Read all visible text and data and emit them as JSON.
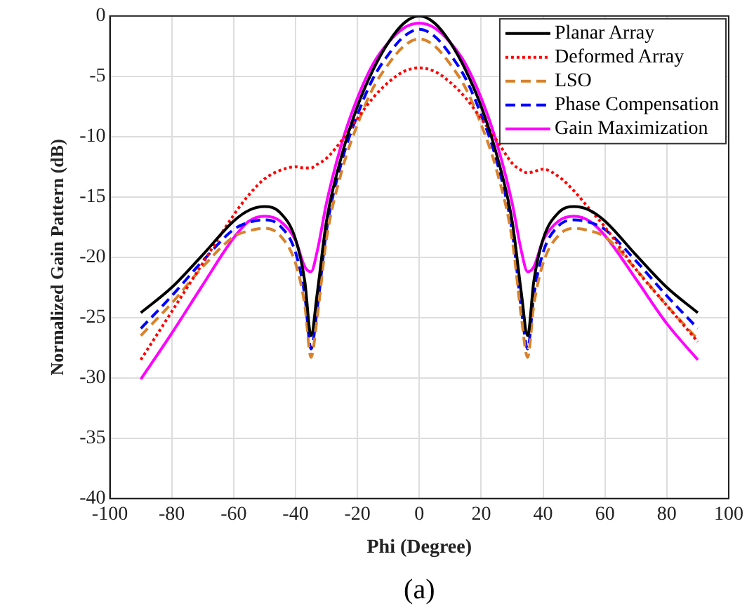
{
  "chart_data": {
    "type": "line",
    "xlabel": "Phi (Degree)",
    "ylabel": "Normalized Gain Pattern (dB)",
    "annotations": [
      "(a)"
    ],
    "x": [
      -90,
      -80,
      -70,
      -60,
      -55,
      -50,
      -45,
      -40,
      -37,
      -35,
      -33,
      -30,
      -25,
      -20,
      -15,
      -10,
      -5,
      0,
      5,
      10,
      15,
      20,
      25,
      30,
      33,
      35,
      37,
      40,
      45,
      50,
      55,
      60,
      70,
      80,
      90
    ],
    "series": [
      {
        "name": "Planar Array",
        "color": "#000000",
        "line_style": "solid",
        "values": [
          -24.6,
          -22.5,
          -19.8,
          -17.0,
          -16.1,
          -15.8,
          -16.3,
          -18.5,
          -22,
          -26.5,
          -23,
          -17,
          -11.5,
          -7.5,
          -4.5,
          -2.2,
          -0.6,
          0,
          -0.6,
          -2.2,
          -4.5,
          -7.5,
          -11.5,
          -17,
          -23,
          -26.5,
          -22,
          -18.5,
          -16.3,
          -15.8,
          -16.1,
          -17.0,
          -19.8,
          -22.5,
          -24.6
        ]
      },
      {
        "name": "Deformed Array",
        "color": "#ff0000",
        "line_style": "dotted",
        "values": [
          -28.5,
          -24.5,
          -20.5,
          -16.5,
          -14.8,
          -13.5,
          -12.8,
          -12.5,
          -12.6,
          -12.6,
          -12.3,
          -11.8,
          -10.3,
          -8.5,
          -6.8,
          -5.5,
          -4.6,
          -4.3,
          -4.6,
          -5.5,
          -6.8,
          -8.5,
          -10.3,
          -12.2,
          -12.8,
          -13.0,
          -12.9,
          -12.7,
          -13.3,
          -14.5,
          -16.0,
          -17.5,
          -21,
          -24,
          -27
        ]
      },
      {
        "name": "LSO",
        "color": "#d9822b",
        "line_style": "dashed",
        "values": [
          -26.5,
          -23.8,
          -20.8,
          -18.3,
          -17.8,
          -17.6,
          -18.2,
          -20.5,
          -24,
          -28.3,
          -25,
          -18.5,
          -12.8,
          -9,
          -6,
          -4,
          -2.5,
          -1.9,
          -2.5,
          -4,
          -6,
          -9,
          -12.8,
          -18.5,
          -25,
          -28.3,
          -24,
          -20.5,
          -18.2,
          -17.6,
          -17.8,
          -18.3,
          -21,
          -24,
          -26.8
        ]
      },
      {
        "name": "Phase Compensation",
        "color": "#0000ff",
        "line_style": "dashed",
        "values": [
          -25.9,
          -23.2,
          -20.3,
          -17.7,
          -17.1,
          -16.9,
          -17.4,
          -19.6,
          -23.2,
          -27.6,
          -24.3,
          -17.8,
          -12,
          -8.2,
          -5.2,
          -3.2,
          -1.7,
          -1.1,
          -1.7,
          -3.2,
          -5.2,
          -8.2,
          -12,
          -17.8,
          -24.3,
          -27.6,
          -23.2,
          -19.6,
          -17.4,
          -16.9,
          -17.1,
          -17.7,
          -20.3,
          -23.2,
          -25.9
        ]
      },
      {
        "name": "Gain Maximization",
        "color": "#ff00ff",
        "line_style": "solid",
        "values": [
          -30.1,
          -26.3,
          -22.3,
          -18.4,
          -17.0,
          -16.6,
          -17.0,
          -18.6,
          -20.8,
          -21.2,
          -19.5,
          -15.5,
          -10.5,
          -6.8,
          -4.0,
          -2.2,
          -1.0,
          -0.6,
          -1.0,
          -2.2,
          -4.0,
          -6.8,
          -10.5,
          -15.5,
          -19.5,
          -21.2,
          -20.8,
          -18.6,
          -17.0,
          -16.6,
          -17.0,
          -18.2,
          -21.8,
          -25.5,
          -28.5
        ]
      }
    ],
    "xlim": [
      -100,
      100
    ],
    "xticks": [
      -100,
      -80,
      -60,
      -40,
      -20,
      0,
      20,
      40,
      60,
      80,
      100
    ],
    "ylim": [
      -40,
      0
    ],
    "yticks": [
      -40,
      -35,
      -30,
      -25,
      -20,
      -15,
      -10,
      -5,
      0
    ],
    "grid": true,
    "legend": "top right",
    "marker": "none"
  }
}
